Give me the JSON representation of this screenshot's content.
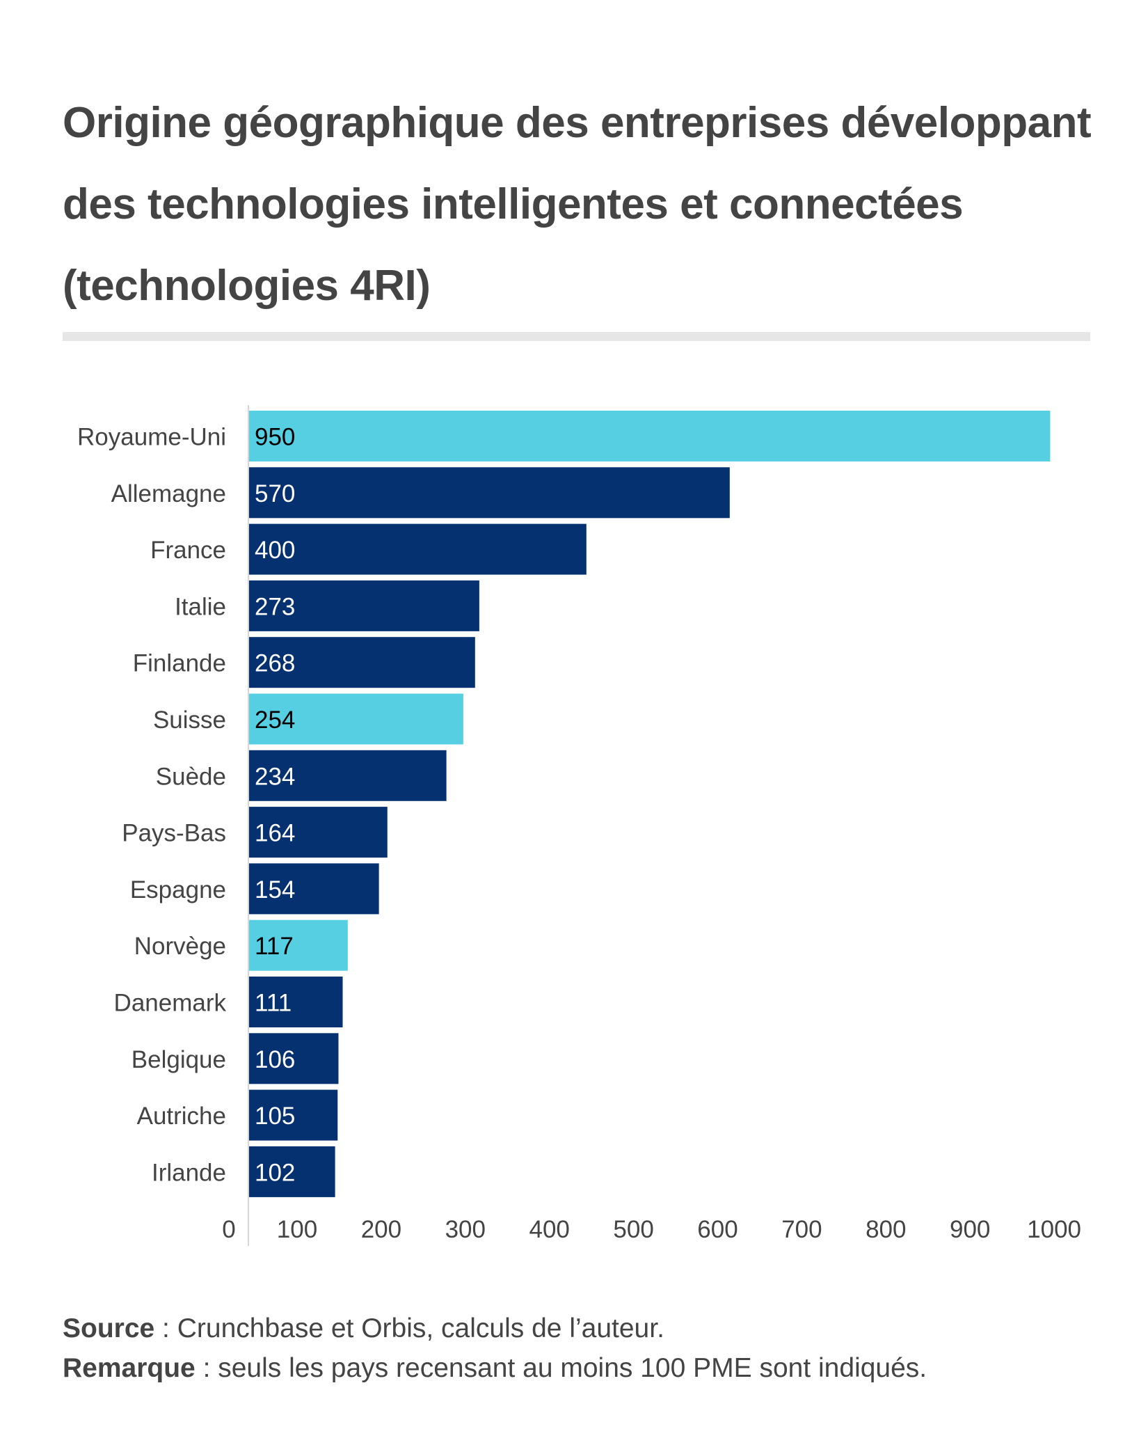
{
  "title": "Origine géographique des entreprises développant des technologies intelligentes et connectées (technologies 4RI)",
  "chart_data": {
    "type": "bar",
    "orientation": "horizontal",
    "categories": [
      "Royaume-Uni",
      "Allemagne",
      "France",
      "Italie",
      "Finlande",
      "Suisse",
      "Suède",
      "Pays-Bas",
      "Espagne",
      "Norvège",
      "Danemark",
      "Belgique",
      "Autriche",
      "Irlande"
    ],
    "values": [
      950,
      570,
      400,
      273,
      268,
      254,
      234,
      164,
      154,
      117,
      111,
      106,
      105,
      102
    ],
    "highlighted": [
      "Royaume-Uni",
      "Suisse",
      "Norvège"
    ],
    "colors": {
      "default": "#053170",
      "highlight": "#56CFE3",
      "label_on_default": "#ffffff",
      "label_on_highlight": "#000000"
    },
    "xlim": [
      0,
      1000
    ],
    "x_ticks": [
      "0",
      "100",
      "200",
      "300",
      "400",
      "500",
      "600",
      "700",
      "800",
      "900",
      "1000"
    ],
    "grid": false,
    "data_labels": true
  },
  "footer": {
    "source_label": "Source",
    "source_text": " : Crunchbase et Orbis, calculs de l’auteur.",
    "note_label": "Remarque",
    "note_text": " : seuls les pays recensant au moins 100 PME sont indiqués."
  }
}
